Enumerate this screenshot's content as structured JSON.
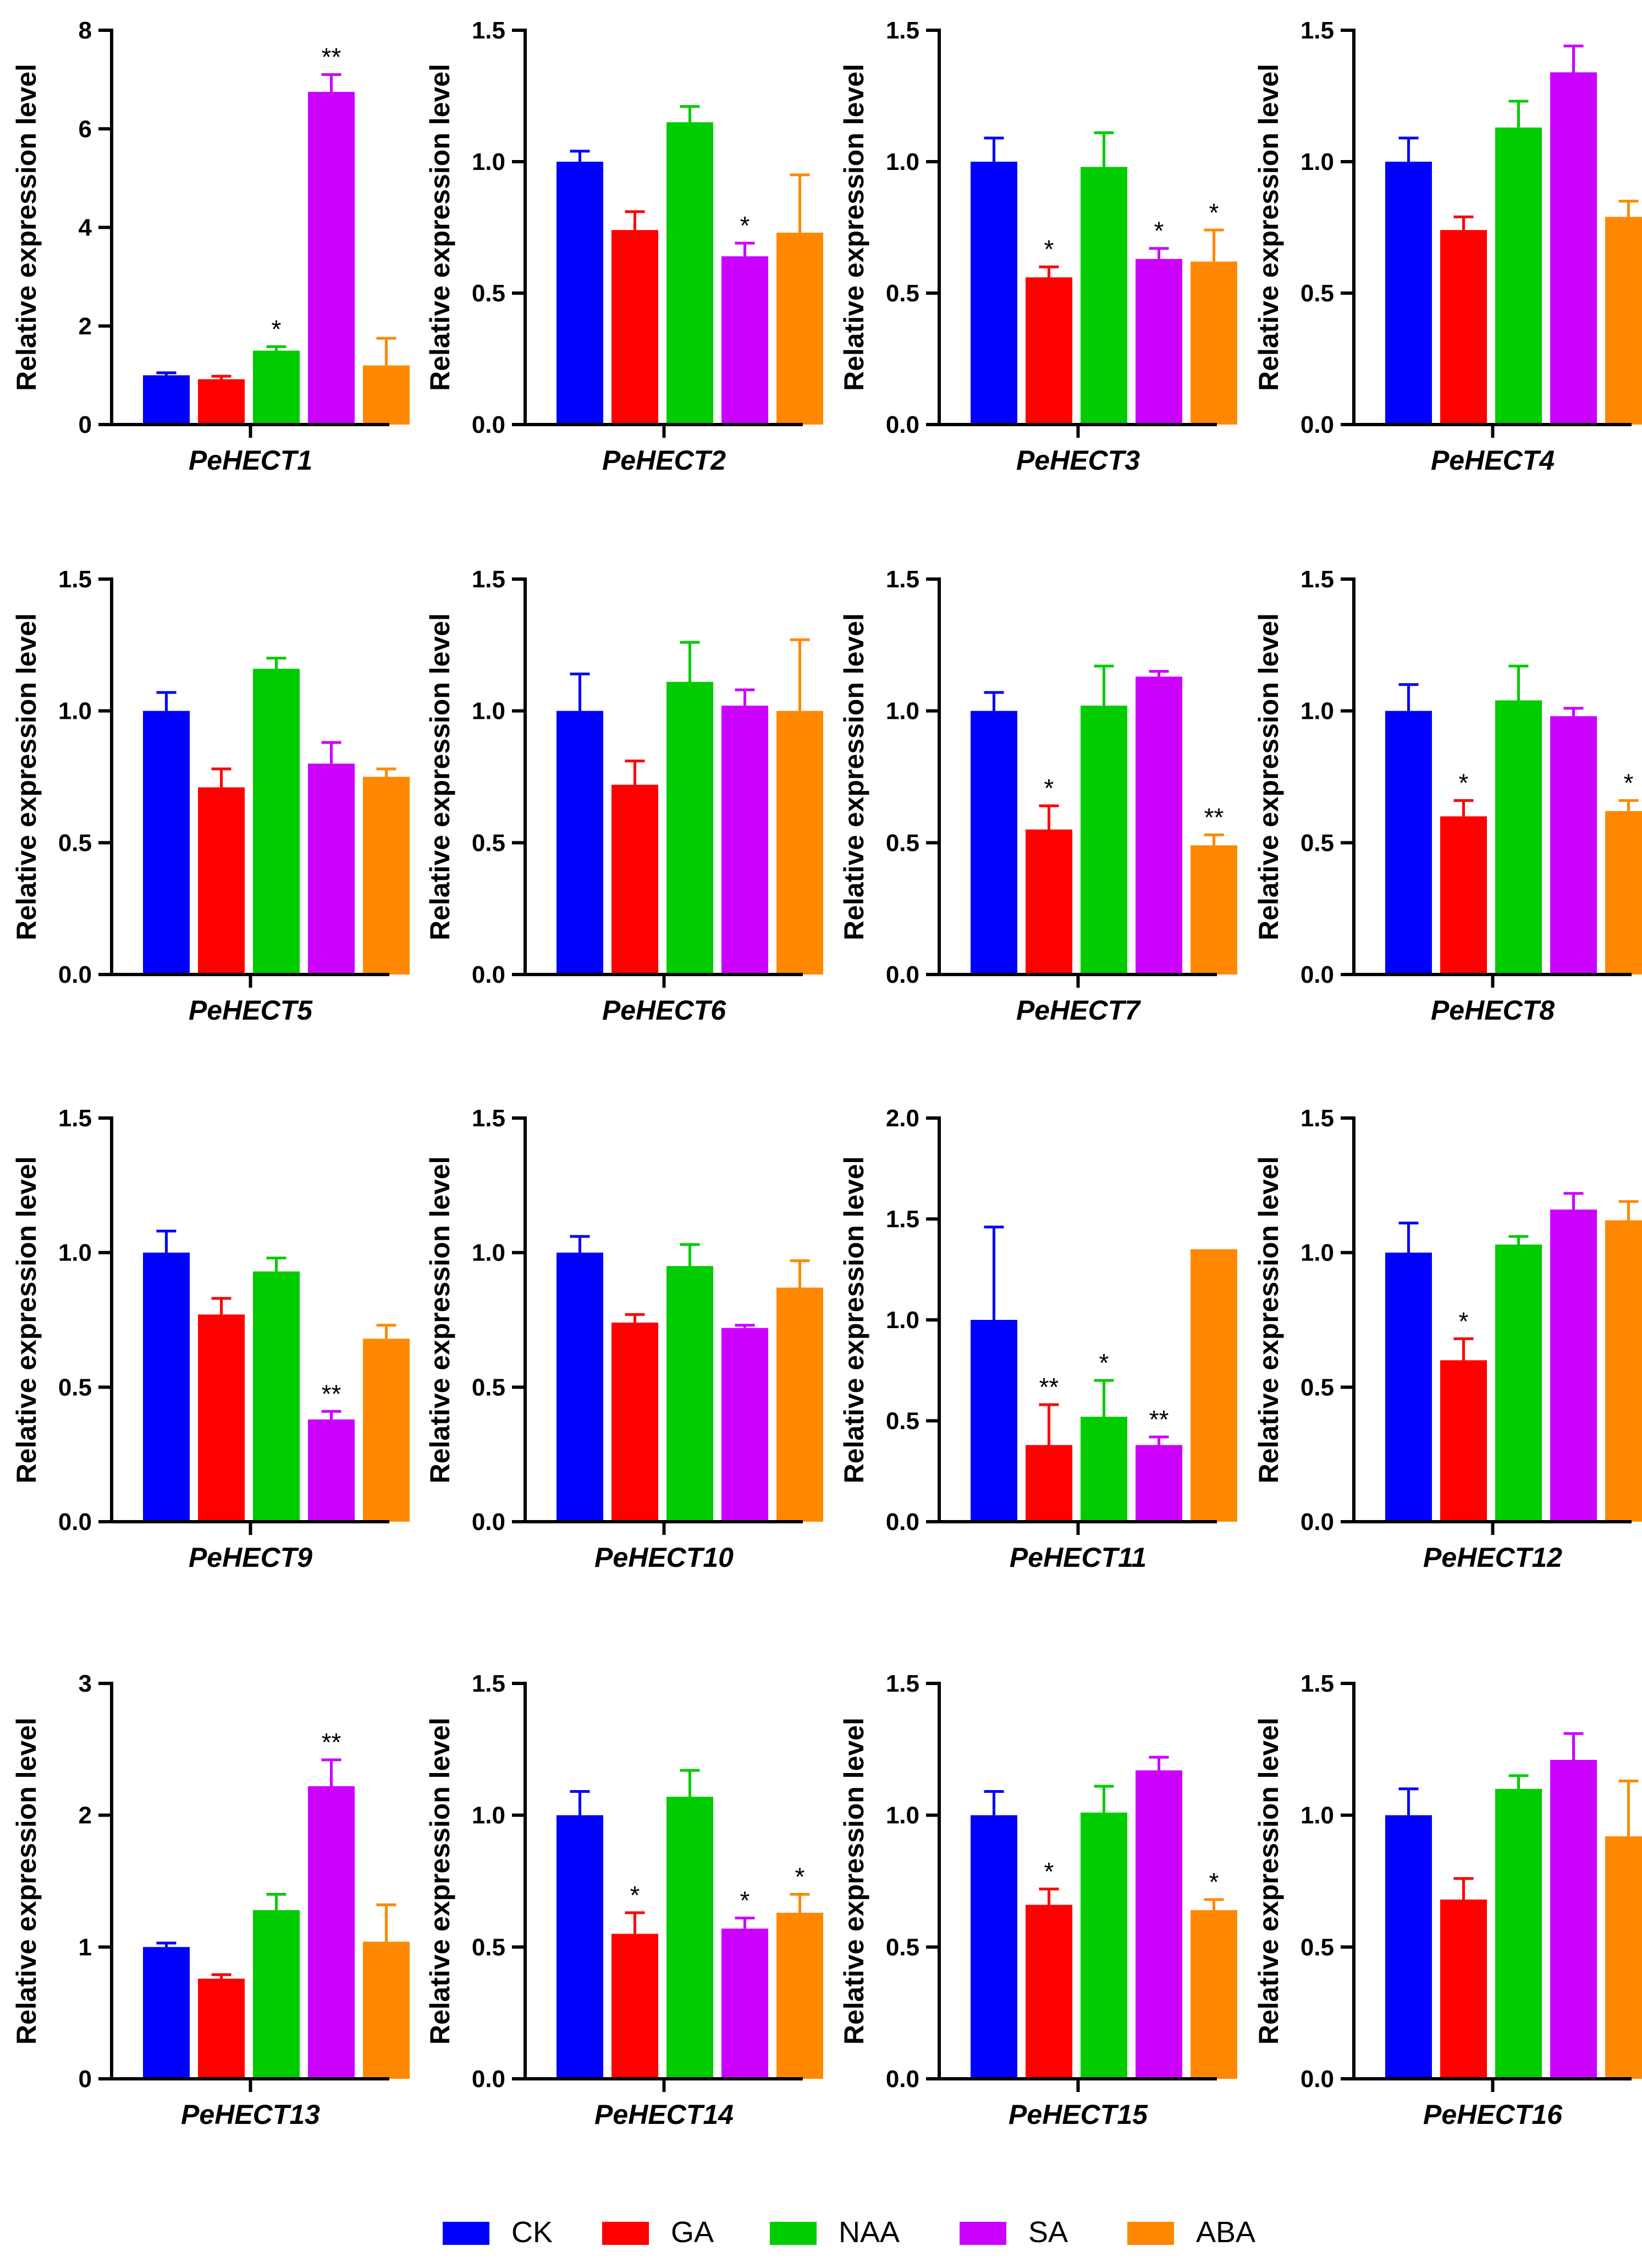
{
  "colors": {
    "CK": "#0000FF",
    "GA": "#FF0000",
    "NAA": "#00CC00",
    "SA": "#CC00FF",
    "ABA": "#FF8800"
  },
  "legend": [
    "CK",
    "GA",
    "NAA",
    "SA",
    "ABA"
  ],
  "chart_data": [
    {
      "type": "bar",
      "title": "PeHECT1",
      "ylabel": "Relative expression level",
      "categories": [
        "CK",
        "GA",
        "NAA",
        "SA",
        "ABA"
      ],
      "ylim": [
        0,
        8
      ],
      "yticks": [
        "0",
        "2",
        "4",
        "6",
        "8"
      ],
      "values": [
        1.0,
        0.92,
        1.5,
        6.75,
        1.2
      ],
      "errors": [
        0.05,
        0.06,
        0.08,
        0.35,
        0.55
      ],
      "annotations": [
        "",
        "",
        "*",
        "**",
        ""
      ]
    },
    {
      "type": "bar",
      "title": "PeHECT2",
      "ylabel": "Relative expression level",
      "categories": [
        "CK",
        "GA",
        "NAA",
        "SA",
        "ABA"
      ],
      "ylim": [
        0,
        1.5
      ],
      "yticks": [
        "0.0",
        "0.5",
        "1.0",
        "1.5"
      ],
      "values": [
        1.0,
        0.74,
        1.15,
        0.64,
        0.73
      ],
      "errors": [
        0.04,
        0.07,
        0.06,
        0.05,
        0.22
      ],
      "annotations": [
        "",
        "",
        "",
        "*",
        ""
      ]
    },
    {
      "type": "bar",
      "title": "PeHECT3",
      "ylabel": "Relative expression level",
      "categories": [
        "CK",
        "GA",
        "NAA",
        "SA",
        "ABA"
      ],
      "ylim": [
        0,
        1.5
      ],
      "yticks": [
        "0.0",
        "0.5",
        "1.0",
        "1.5"
      ],
      "values": [
        1.0,
        0.56,
        0.98,
        0.63,
        0.62
      ],
      "errors": [
        0.09,
        0.04,
        0.13,
        0.04,
        0.12
      ],
      "annotations": [
        "",
        "*",
        "",
        "*",
        "*"
      ]
    },
    {
      "type": "bar",
      "title": "PeHECT4",
      "ylabel": "Relative expression level",
      "categories": [
        "CK",
        "GA",
        "NAA",
        "SA",
        "ABA"
      ],
      "ylim": [
        0,
        1.5
      ],
      "yticks": [
        "0.0",
        "0.5",
        "1.0",
        "1.5"
      ],
      "values": [
        1.0,
        0.74,
        1.13,
        1.34,
        0.79
      ],
      "errors": [
        0.09,
        0.05,
        0.1,
        0.1,
        0.06
      ],
      "annotations": [
        "",
        "",
        "",
        "",
        ""
      ]
    },
    {
      "type": "bar",
      "title": "PeHECT5",
      "ylabel": "Relative expression level",
      "categories": [
        "CK",
        "GA",
        "NAA",
        "SA",
        "ABA"
      ],
      "ylim": [
        0,
        1.5
      ],
      "yticks": [
        "0.0",
        "0.5",
        "1.0",
        "1.5"
      ],
      "values": [
        1.0,
        0.71,
        1.16,
        0.8,
        0.75
      ],
      "errors": [
        0.07,
        0.07,
        0.04,
        0.08,
        0.03
      ],
      "annotations": [
        "",
        "",
        "",
        "",
        ""
      ]
    },
    {
      "type": "bar",
      "title": "PeHECT6",
      "ylabel": "Relative expression level",
      "categories": [
        "CK",
        "GA",
        "NAA",
        "SA",
        "ABA"
      ],
      "ylim": [
        0,
        1.5
      ],
      "yticks": [
        "0.0",
        "0.5",
        "1.0",
        "1.5"
      ],
      "values": [
        1.0,
        0.72,
        1.11,
        1.02,
        1.0
      ],
      "errors": [
        0.14,
        0.09,
        0.15,
        0.06,
        0.27
      ],
      "annotations": [
        "",
        "",
        "",
        "",
        ""
      ]
    },
    {
      "type": "bar",
      "title": "PeHECT7",
      "ylabel": "Relative expression level",
      "categories": [
        "CK",
        "GA",
        "NAA",
        "SA",
        "ABA"
      ],
      "ylim": [
        0,
        1.5
      ],
      "yticks": [
        "0.0",
        "0.5",
        "1.0",
        "1.5"
      ],
      "values": [
        1.0,
        0.55,
        1.02,
        1.13,
        0.49
      ],
      "errors": [
        0.07,
        0.09,
        0.15,
        0.02,
        0.04
      ],
      "annotations": [
        "",
        "*",
        "",
        "",
        "**"
      ]
    },
    {
      "type": "bar",
      "title": "PeHECT8",
      "ylabel": "Relative expression level",
      "categories": [
        "CK",
        "GA",
        "NAA",
        "SA",
        "ABA"
      ],
      "ylim": [
        0,
        1.5
      ],
      "yticks": [
        "0.0",
        "0.5",
        "1.0",
        "1.5"
      ],
      "values": [
        1.0,
        0.6,
        1.04,
        0.98,
        0.62
      ],
      "errors": [
        0.1,
        0.06,
        0.13,
        0.03,
        0.04
      ],
      "annotations": [
        "",
        "*",
        "",
        "",
        "*"
      ]
    },
    {
      "type": "bar",
      "title": "PeHECT9",
      "ylabel": "Relative expression level",
      "categories": [
        "CK",
        "GA",
        "NAA",
        "SA",
        "ABA"
      ],
      "ylim": [
        0,
        1.5
      ],
      "yticks": [
        "0.0",
        "0.5",
        "1.0",
        "1.5"
      ],
      "values": [
        1.0,
        0.77,
        0.93,
        0.38,
        0.68
      ],
      "errors": [
        0.08,
        0.06,
        0.05,
        0.03,
        0.05
      ],
      "annotations": [
        "",
        "",
        "",
        "**",
        ""
      ]
    },
    {
      "type": "bar",
      "title": "PeHECT10",
      "ylabel": "Relative expression level",
      "categories": [
        "CK",
        "GA",
        "NAA",
        "SA",
        "ABA"
      ],
      "ylim": [
        0,
        1.5
      ],
      "yticks": [
        "0.0",
        "0.5",
        "1.0",
        "1.5"
      ],
      "values": [
        1.0,
        0.74,
        0.95,
        0.72,
        0.87
      ],
      "errors": [
        0.06,
        0.03,
        0.08,
        0.01,
        0.1
      ],
      "annotations": [
        "",
        "",
        "",
        "",
        ""
      ]
    },
    {
      "type": "bar",
      "title": "PeHECT11",
      "ylabel": "Relative expression level",
      "categories": [
        "CK",
        "GA",
        "NAA",
        "SA",
        "ABA"
      ],
      "ylim": [
        0,
        2.0
      ],
      "yticks": [
        "0.0",
        "0.5",
        "1.0",
        "1.5",
        "2.0"
      ],
      "values": [
        1.0,
        0.38,
        0.52,
        0.38,
        1.35
      ],
      "errors": [
        0.46,
        0.2,
        0.18,
        0.04,
        0.0
      ],
      "annotations": [
        "",
        "**",
        "*",
        "**",
        ""
      ]
    },
    {
      "type": "bar",
      "title": "PeHECT12",
      "ylabel": "Relative expression level",
      "categories": [
        "CK",
        "GA",
        "NAA",
        "SA",
        "ABA"
      ],
      "ylim": [
        0,
        1.5
      ],
      "yticks": [
        "0.0",
        "0.5",
        "1.0",
        "1.5"
      ],
      "values": [
        1.0,
        0.6,
        1.03,
        1.16,
        1.12
      ],
      "errors": [
        0.11,
        0.08,
        0.03,
        0.06,
        0.07
      ],
      "annotations": [
        "",
        "*",
        "",
        "",
        ""
      ]
    },
    {
      "type": "bar",
      "title": "PeHECT13",
      "ylabel": "Relative expression level",
      "categories": [
        "CK",
        "GA",
        "NAA",
        "SA",
        "ABA"
      ],
      "ylim": [
        0,
        3
      ],
      "yticks": [
        "0",
        "1",
        "2",
        "3"
      ],
      "values": [
        1.0,
        0.76,
        1.28,
        2.22,
        1.04
      ],
      "errors": [
        0.03,
        0.03,
        0.12,
        0.2,
        0.28
      ],
      "annotations": [
        "",
        "",
        "",
        "**",
        ""
      ]
    },
    {
      "type": "bar",
      "title": "PeHECT14",
      "ylabel": "Relative expression level",
      "categories": [
        "CK",
        "GA",
        "NAA",
        "SA",
        "ABA"
      ],
      "ylim": [
        0,
        1.5
      ],
      "yticks": [
        "0.0",
        "0.5",
        "1.0",
        "1.5"
      ],
      "values": [
        1.0,
        0.55,
        1.07,
        0.57,
        0.63
      ],
      "errors": [
        0.09,
        0.08,
        0.1,
        0.04,
        0.07
      ],
      "annotations": [
        "",
        "*",
        "",
        "*",
        "*"
      ]
    },
    {
      "type": "bar",
      "title": "PeHECT15",
      "ylabel": "Relative expression level",
      "categories": [
        "CK",
        "GA",
        "NAA",
        "SA",
        "ABA"
      ],
      "ylim": [
        0,
        1.5
      ],
      "yticks": [
        "0.0",
        "0.5",
        "1.0",
        "1.5"
      ],
      "values": [
        1.0,
        0.66,
        1.01,
        1.17,
        0.64
      ],
      "errors": [
        0.09,
        0.06,
        0.1,
        0.05,
        0.04
      ],
      "annotations": [
        "",
        "*",
        "",
        "",
        "*"
      ]
    },
    {
      "type": "bar",
      "title": "PeHECT16",
      "ylabel": "Relative expression level",
      "categories": [
        "CK",
        "GA",
        "NAA",
        "SA",
        "ABA"
      ],
      "ylim": [
        0,
        1.5
      ],
      "yticks": [
        "0.0",
        "0.5",
        "1.0",
        "1.5"
      ],
      "values": [
        1.0,
        0.68,
        1.1,
        1.21,
        0.92
      ],
      "errors": [
        0.1,
        0.08,
        0.05,
        0.1,
        0.21
      ],
      "annotations": [
        "",
        "",
        "",
        "",
        ""
      ]
    }
  ]
}
